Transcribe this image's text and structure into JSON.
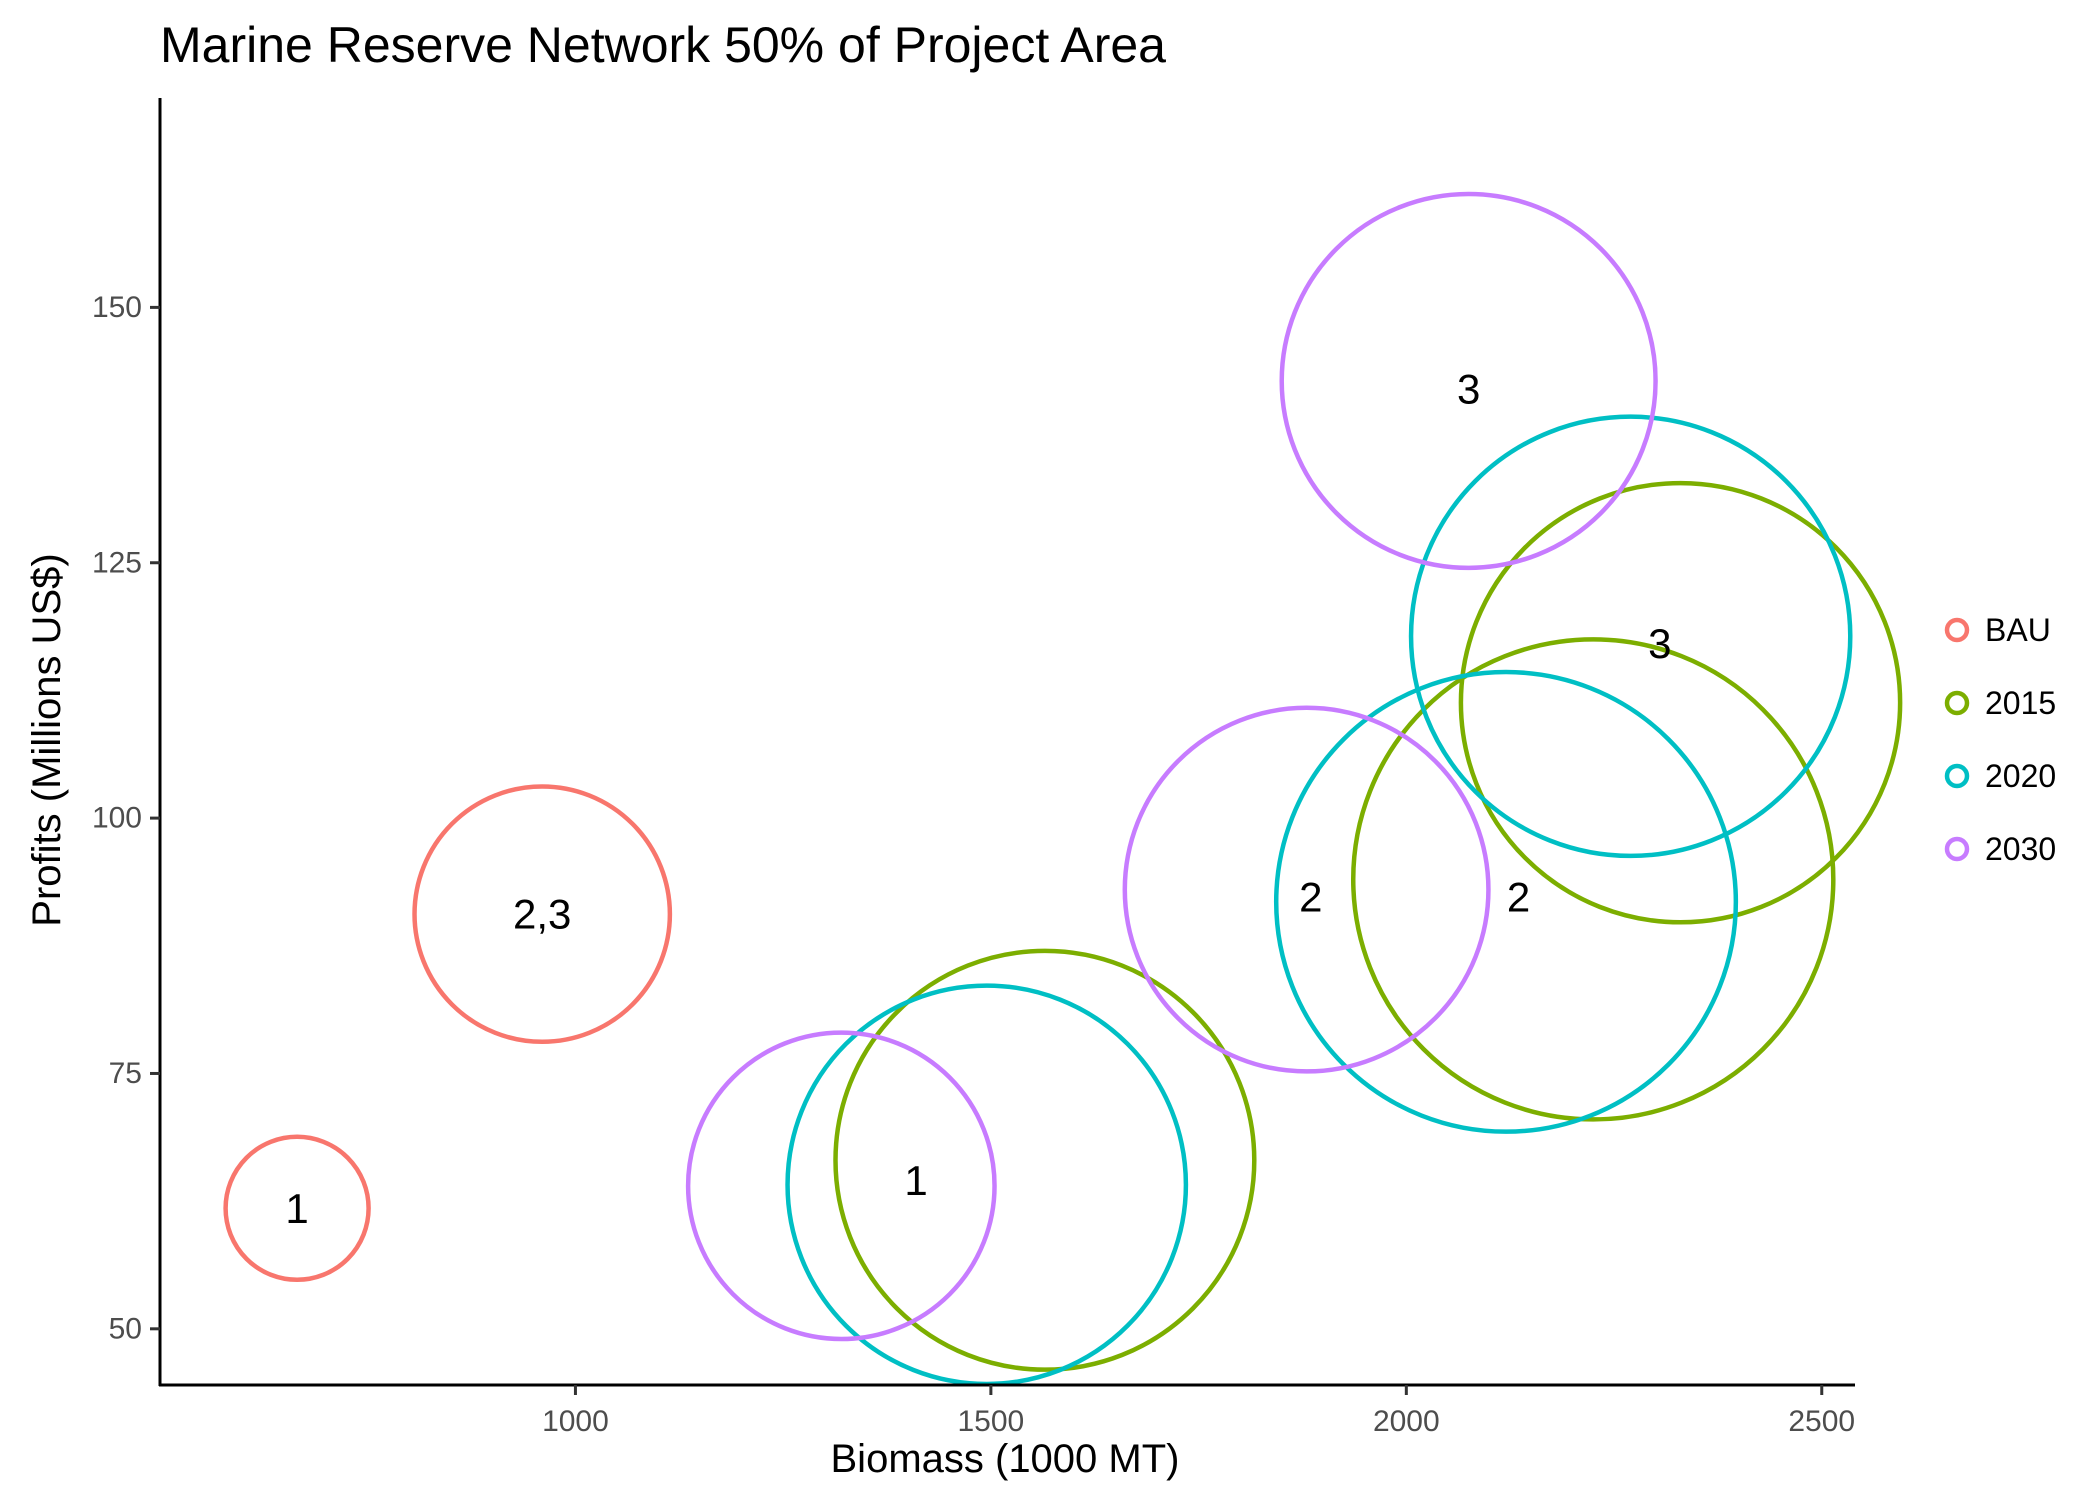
{
  "chart_data": {
    "type": "scatter",
    "title": "Marine Reserve Network 50% of Project Area",
    "xlabel": "Biomass (1000 MT)",
    "ylabel": "Profits (Millions US$)",
    "xlim": [
      500,
      2540
    ],
    "ylim": [
      44.5,
      170.5
    ],
    "x_ticks": [
      1000,
      1500,
      2000,
      2500
    ],
    "y_ticks": [
      50,
      75,
      100,
      125,
      150
    ],
    "grid": false,
    "legend_position": "right",
    "series": [
      {
        "name": "BAU",
        "color": "#F8766D",
        "points": [
          {
            "x": 665,
            "y": 61.8,
            "size": 7,
            "label": "1"
          },
          {
            "x": 960,
            "y": 90.6,
            "size": 12.5,
            "label": "2,3"
          }
        ]
      },
      {
        "name": "2015",
        "color": "#7CAE00",
        "points": [
          {
            "x": 1565,
            "y": 66.5,
            "size": 20.5,
            "label": ""
          },
          {
            "x": 2225,
            "y": 94.0,
            "size": 23.5,
            "label": ""
          },
          {
            "x": 2330,
            "y": 111.3,
            "size": 21.5,
            "label": ""
          }
        ]
      },
      {
        "name": "2020",
        "color": "#00BFC4",
        "points": [
          {
            "x": 1495,
            "y": 64.1,
            "size": 19.5,
            "label": ""
          },
          {
            "x": 2120,
            "y": 91.8,
            "size": 22.5,
            "label": ""
          },
          {
            "x": 2270,
            "y": 117.8,
            "size": 21.5,
            "label": ""
          }
        ]
      },
      {
        "name": "2030",
        "color": "#C77CFF",
        "points": [
          {
            "x": 1320,
            "y": 64.0,
            "size": 15,
            "label": ""
          },
          {
            "x": 1880,
            "y": 93.0,
            "size": 17.8,
            "label": ""
          },
          {
            "x": 2075,
            "y": 142.8,
            "size": 18.3,
            "label": ""
          }
        ]
      }
    ],
    "annotations": [
      {
        "x": 665,
        "y": 61.8,
        "text": "1"
      },
      {
        "x": 960,
        "y": 90.6,
        "text": "2,3"
      },
      {
        "x": 1410,
        "y": 64.5,
        "text": "1"
      },
      {
        "x": 1885,
        "y": 92.3,
        "text": "2"
      },
      {
        "x": 2135,
        "y": 92.3,
        "text": "2"
      },
      {
        "x": 2075,
        "y": 142.0,
        "text": "3"
      },
      {
        "x": 2305,
        "y": 117.1,
        "text": "3"
      }
    ]
  }
}
